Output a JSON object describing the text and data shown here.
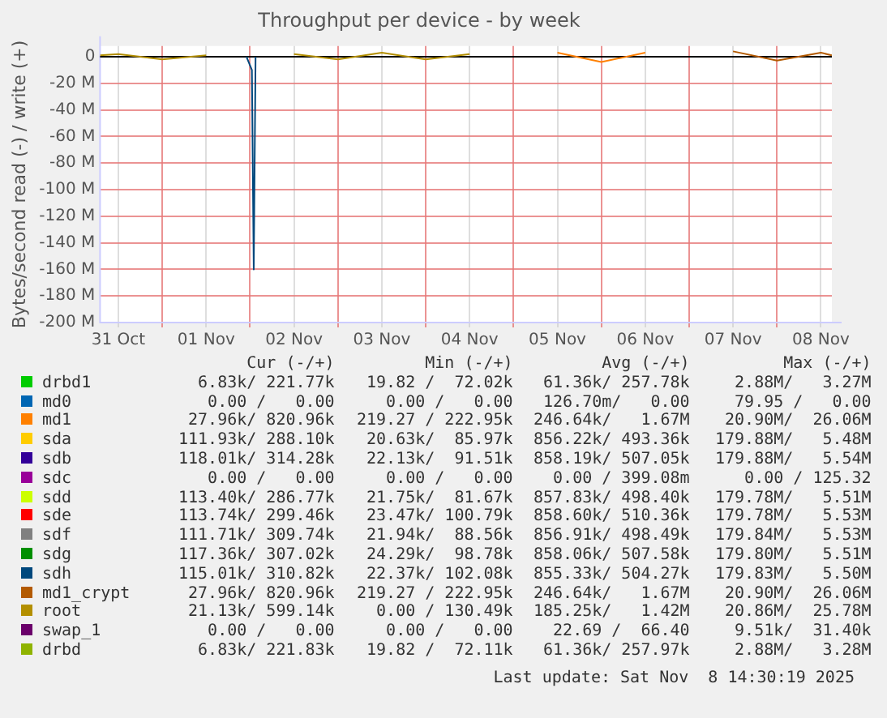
{
  "chart_data": {
    "type": "line",
    "title": "Throughput per device - by week",
    "ylabel": "Bytes/second read (-) / write (+)",
    "x": [
      "2025-10-31T07:00",
      "2025-10-31T12:00",
      "2025-11-01T00:00",
      "2025-11-01T12:00",
      "2025-11-01T23:00",
      "2025-11-02T00:30",
      "2025-11-02T01:00",
      "2025-11-02T01:30",
      "2025-11-02T03:00",
      "2025-11-02T12:00",
      "2025-11-03T00:00",
      "2025-11-03T12:00",
      "2025-11-04T00:00",
      "2025-11-04T12:00",
      "2025-11-05T00:00",
      "2025-11-05T12:00",
      "2025-11-06T00:00",
      "2025-11-06T12:00",
      "2025-11-07T00:00",
      "2025-11-07T12:00",
      "2025-11-08T00:00",
      "2025-11-08T12:00",
      "2025-11-08T15:00"
    ],
    "xlim": [
      "2025-10-31T07:00",
      "2025-11-08T15:00"
    ],
    "xticks": [
      {
        "value": "2025-10-31T12:00",
        "label": "31 Oct"
      },
      {
        "value": "2025-11-01T00:00",
        "label": null
      },
      {
        "value": "2025-11-01T12:00",
        "label": "01 Nov"
      },
      {
        "value": "2025-11-02T00:00",
        "label": null
      },
      {
        "value": "2025-11-02T12:00",
        "label": "02 Nov"
      },
      {
        "value": "2025-11-03T00:00",
        "label": null
      },
      {
        "value": "2025-11-03T12:00",
        "label": "03 Nov"
      },
      {
        "value": "2025-11-04T00:00",
        "label": null
      },
      {
        "value": "2025-11-04T12:00",
        "label": "04 Nov"
      },
      {
        "value": "2025-11-05T00:00",
        "label": null
      },
      {
        "value": "2025-11-05T12:00",
        "label": "05 Nov"
      },
      {
        "value": "2025-11-06T00:00",
        "label": null
      },
      {
        "value": "2025-11-06T12:00",
        "label": "06 Nov"
      },
      {
        "value": "2025-11-07T00:00",
        "label": null
      },
      {
        "value": "2025-11-07T12:00",
        "label": "07 Nov"
      },
      {
        "value": "2025-11-08T00:00",
        "label": null
      },
      {
        "value": "2025-11-08T12:00",
        "label": "08 Nov"
      }
    ],
    "ylim": [
      -200000000,
      8000000
    ],
    "yticks": [
      {
        "value": -200000000,
        "label": "-200 M"
      },
      {
        "value": -180000000,
        "label": "-180 M"
      },
      {
        "value": -160000000,
        "label": "-160 M"
      },
      {
        "value": -140000000,
        "label": "-140 M"
      },
      {
        "value": -120000000,
        "label": "-120 M"
      },
      {
        "value": -100000000,
        "label": "-100 M"
      },
      {
        "value": -80000000,
        "label": "-80 M"
      },
      {
        "value": -60000000,
        "label": "-60 M"
      },
      {
        "value": -40000000,
        "label": "-40 M"
      },
      {
        "value": -20000000,
        "label": "-20 M"
      },
      0
    ],
    "grid": true,
    "legend": "bottom",
    "marker": "none",
    "line_style": "solid",
    "ref_lines": [
      {
        "axis": "y",
        "value": 0,
        "color": "#000000"
      }
    ],
    "series": [
      {
        "name": "drbd1",
        "color": "#00cc00",
        "values": [
          null,
          null,
          null,
          null,
          null,
          null,
          null,
          null,
          null,
          null,
          null,
          null,
          null,
          null,
          null,
          null,
          null,
          null,
          null,
          null,
          null,
          null,
          null
        ]
      },
      {
        "name": "md0",
        "color": "#0066b3",
        "values": [
          null,
          null,
          null,
          null,
          null,
          null,
          null,
          null,
          null,
          null,
          null,
          null,
          null,
          null,
          null,
          null,
          null,
          null,
          null,
          null,
          null,
          null,
          null
        ]
      },
      {
        "name": "md1",
        "color": "#ff8000",
        "values": [
          null,
          null,
          null,
          null,
          null,
          null,
          null,
          null,
          null,
          null,
          null,
          null,
          null,
          null,
          null,
          3000000,
          -4000000,
          3000000,
          null,
          null,
          null,
          null,
          null
        ]
      },
      {
        "name": "sda",
        "color": "#ffcc00",
        "values": [
          null,
          null,
          null,
          null,
          null,
          null,
          null,
          null,
          null,
          null,
          null,
          null,
          null,
          null,
          null,
          null,
          null,
          null,
          null,
          null,
          null,
          null,
          null
        ]
      },
      {
        "name": "sdb",
        "color": "#330099",
        "values": [
          null,
          null,
          null,
          null,
          null,
          null,
          null,
          null,
          null,
          null,
          null,
          null,
          null,
          null,
          null,
          null,
          null,
          null,
          null,
          null,
          null,
          null,
          null
        ]
      },
      {
        "name": "sdc",
        "color": "#990099",
        "values": [
          null,
          null,
          null,
          null,
          null,
          null,
          null,
          null,
          null,
          null,
          null,
          null,
          null,
          null,
          null,
          null,
          null,
          null,
          null,
          null,
          null,
          null,
          null
        ]
      },
      {
        "name": "sdd",
        "color": "#ccff00",
        "values": [
          null,
          null,
          null,
          null,
          null,
          null,
          null,
          null,
          null,
          null,
          null,
          null,
          null,
          null,
          null,
          null,
          null,
          null,
          null,
          null,
          null,
          null,
          null
        ]
      },
      {
        "name": "sde",
        "color": "#ff0000",
        "values": [
          null,
          null,
          null,
          null,
          null,
          null,
          null,
          null,
          null,
          null,
          null,
          null,
          null,
          null,
          null,
          null,
          null,
          null,
          null,
          null,
          null,
          null,
          null
        ]
      },
      {
        "name": "sdf",
        "color": "#808080",
        "values": [
          null,
          null,
          null,
          null,
          null,
          null,
          null,
          null,
          null,
          null,
          null,
          null,
          null,
          null,
          null,
          null,
          null,
          null,
          null,
          null,
          null,
          null,
          null
        ]
      },
      {
        "name": "sdg",
        "color": "#008f00",
        "values": [
          null,
          null,
          null,
          null,
          null,
          null,
          null,
          null,
          null,
          null,
          null,
          null,
          null,
          null,
          null,
          null,
          null,
          null,
          null,
          null,
          null,
          null,
          null
        ]
      },
      {
        "name": "sdh",
        "color": "#00487d",
        "values": [
          null,
          null,
          null,
          null,
          0,
          -10000000,
          -160000000,
          0,
          null,
          null,
          null,
          null,
          null,
          null,
          null,
          null,
          null,
          null,
          null,
          null,
          null,
          null,
          null
        ]
      },
      {
        "name": "md1_crypt",
        "color": "#b35a00",
        "values": [
          null,
          null,
          null,
          null,
          null,
          null,
          null,
          null,
          null,
          null,
          null,
          null,
          null,
          null,
          null,
          null,
          null,
          null,
          null,
          4000000,
          -3000000,
          3000000,
          1000000
        ]
      },
      {
        "name": "root",
        "color": "#b38f00",
        "values": [
          1000000,
          2000000,
          -2000000,
          1000000,
          null,
          null,
          null,
          null,
          null,
          2000000,
          -2000000,
          3000000,
          -2000000,
          2000000,
          null,
          null,
          null,
          null,
          null,
          null,
          null,
          null,
          null
        ]
      },
      {
        "name": "swap_1",
        "color": "#6b006b",
        "values": [
          null,
          null,
          null,
          null,
          null,
          null,
          null,
          null,
          null,
          null,
          null,
          null,
          null,
          null,
          null,
          null,
          null,
          null,
          null,
          null,
          null,
          null,
          null
        ]
      },
      {
        "name": "drbd",
        "color": "#8fb300",
        "values": [
          null,
          null,
          null,
          null,
          null,
          null,
          null,
          null,
          null,
          null,
          null,
          null,
          null,
          null,
          null,
          null,
          null,
          null,
          null,
          null,
          null,
          null,
          null
        ]
      }
    ],
    "annotations": [
      "Cur (-/+)",
      "Min (-/+)",
      "Avg (-/+)",
      "Max (-/+)",
      "6.83k/ 221.77k",
      "19.82 /  72.02k",
      "61.36k/ 257.78k",
      "2.88M/   3.27M",
      "0.00 /   0.00",
      "0.00 /   0.00",
      "126.70m/   0.00",
      "79.95 /   0.00",
      "27.96k/ 820.96k",
      "219.27 / 222.95k",
      "246.64k/   1.67M",
      "20.90M/  26.06M",
      "111.93k/ 288.10k",
      "20.63k/  85.97k",
      "856.22k/ 493.36k",
      "179.88M/   5.48M",
      "118.01k/ 314.28k",
      "22.13k/  91.51k",
      "858.19k/ 507.05k",
      "179.88M/   5.54M",
      "0.00 /   0.00",
      "0.00 /   0.00",
      "0.00 / 399.08m",
      "0.00 / 125.32",
      "113.40k/ 286.77k",
      "21.75k/  81.67k",
      "857.83k/ 498.40k",
      "179.78M/   5.51M",
      "113.74k/ 299.46k",
      "23.47k/ 100.79k",
      "858.60k/ 510.36k",
      "179.78M/   5.53M",
      "111.71k/ 309.74k",
      "21.94k/  88.56k",
      "856.91k/ 498.49k",
      "179.84M/   5.53M",
      "117.36k/ 307.02k",
      "24.29k/  98.78k",
      "858.06k/ 507.58k",
      "179.80M/   5.51M",
      "115.01k/ 310.82k",
      "22.37k/ 102.08k",
      "855.33k/ 504.27k",
      "179.83M/   5.50M",
      "27.96k/ 820.96k",
      "219.27 / 222.95k",
      "246.64k/   1.67M",
      "20.90M/  26.06M",
      "21.13k/ 599.14k",
      "0.00 / 130.49k",
      "185.25k/   1.42M",
      "20.86M/  25.78M",
      "0.00 /   0.00",
      "0.00 /   0.00",
      "22.69 /  66.40",
      "9.51k/  31.40k",
      "6.83k/ 221.83k",
      "19.82 /  72.11k",
      "61.36k/ 257.97k",
      "2.88M/   3.28M",
      "Last update: Sat Nov  8 14:30:19 2025"
    ]
  }
}
